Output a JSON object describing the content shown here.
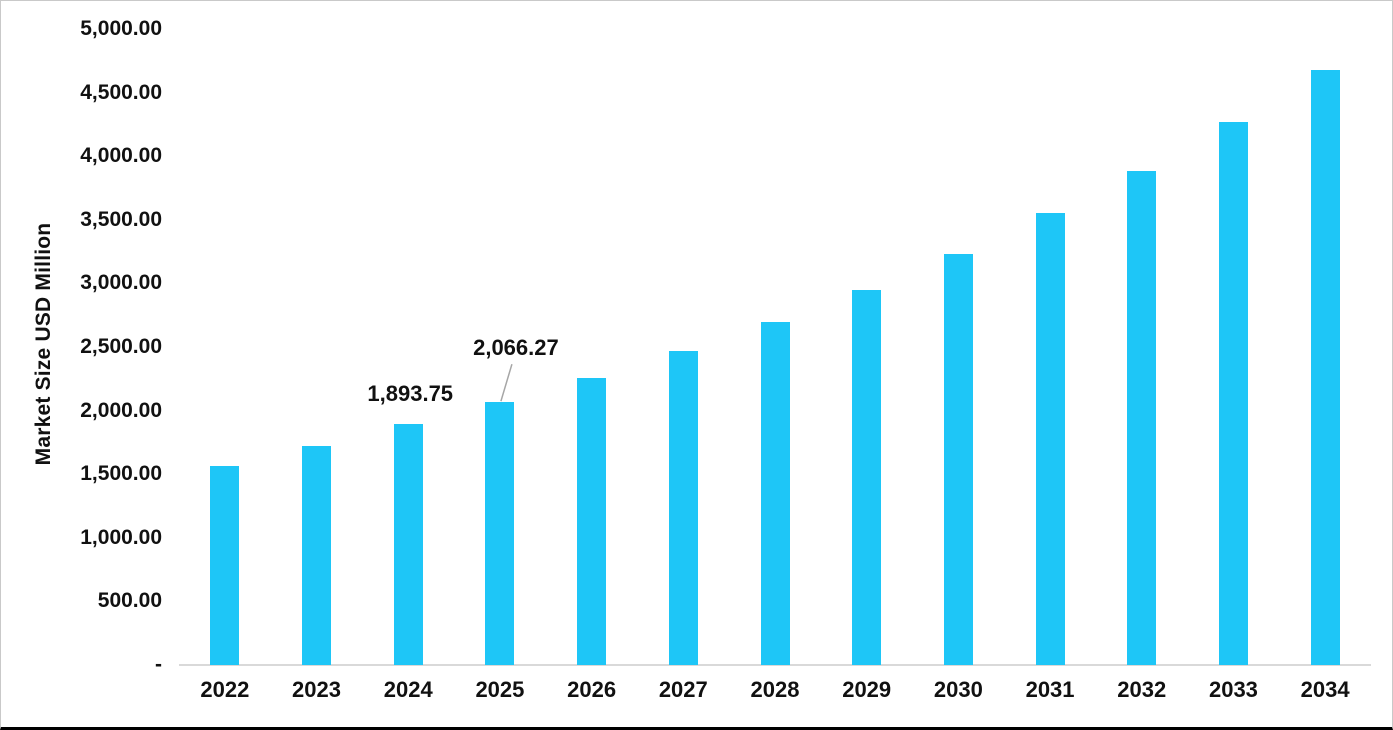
{
  "chart_data": {
    "type": "bar",
    "title": "",
    "xlabel": "",
    "ylabel": "Market Size USD Million",
    "categories": [
      "2022",
      "2023",
      "2024",
      "2025",
      "2026",
      "2027",
      "2028",
      "2029",
      "2030",
      "2031",
      "2032",
      "2033",
      "2034"
    ],
    "values": [
      1565,
      1720,
      1893.75,
      2066.27,
      2255,
      2470,
      2695,
      2950,
      3235,
      3550,
      3885,
      4270,
      4680
    ],
    "ylim": [
      0,
      5000
    ],
    "ytick_values": [
      0,
      500,
      1000,
      1500,
      2000,
      2500,
      3000,
      3500,
      4000,
      4500,
      5000
    ],
    "ytick_labels": [
      "-",
      "500.00",
      "1,000.00",
      "1,500.00",
      "2,000.00",
      "2,500.00",
      "3,000.00",
      "3,500.00",
      "4,000.00",
      "4,500.00",
      "5,000.00"
    ],
    "grid": false,
    "legend": null,
    "annotations": [
      {
        "index": 2,
        "text": "1,893.75",
        "leader": false
      },
      {
        "index": 3,
        "text": "2,066.27",
        "leader": true
      }
    ],
    "colors": {
      "bar": "#1ec6f7",
      "axis_line": "#d9d9d9",
      "leader_line": "#a6a6a6",
      "text": "#111111"
    }
  }
}
